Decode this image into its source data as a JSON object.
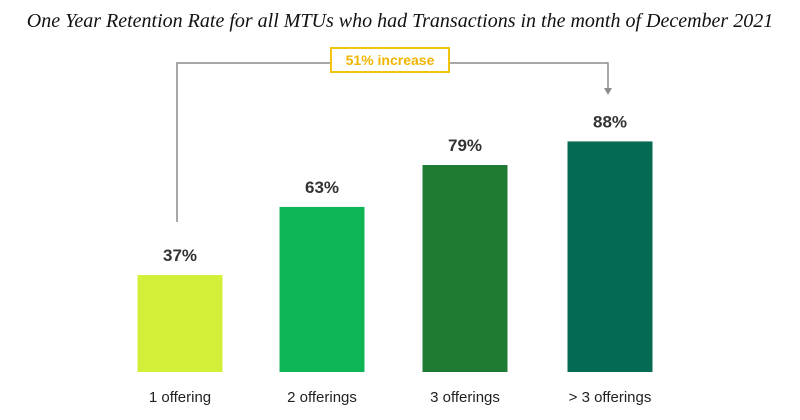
{
  "chart_data": {
    "type": "bar",
    "title": "One Year Retention Rate for all MTUs who had Transactions in the month of December 2021",
    "categories": [
      "1 offering",
      "2 offerings",
      "3 offerings",
      "> 3 offerings"
    ],
    "values": [
      37,
      63,
      79,
      88
    ],
    "value_labels": [
      "37%",
      "63%",
      "79%",
      "88%"
    ],
    "bar_colors": [
      "#d4ef38",
      "#0db557",
      "#1f7a33",
      "#046a52"
    ],
    "ylim": [
      0,
      100
    ],
    "xlabel": "",
    "ylabel": "",
    "grid": false,
    "legend": "none",
    "annotation": {
      "text": "51% increase",
      "from_category": "1 offering",
      "to_category": "> 3 offerings",
      "border_color": "#f2c40f",
      "text_color": "#f0b400",
      "connector_color": "#8c8c8c"
    }
  }
}
